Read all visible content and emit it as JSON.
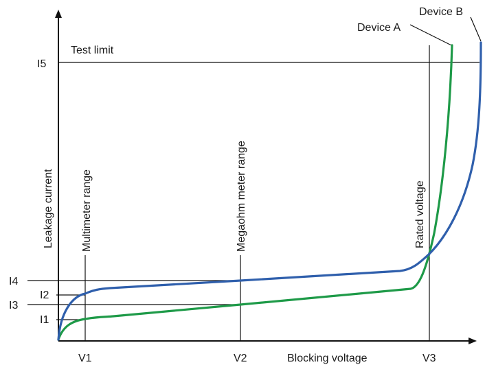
{
  "diagram": {
    "x_axis_label": "Blocking voltage",
    "y_axis_label": "Leakage current",
    "x_ticks": [
      "V1",
      "V2",
      "V3"
    ],
    "y_ticks": [
      "I1",
      "I2",
      "I3",
      "I4",
      "I5"
    ],
    "test_limit_label": "Test limit",
    "multimeter_label": "Multimeter range",
    "megaohm_label": "Megaohm meter range",
    "rated_label": "Rated voltage",
    "device_a_label": "Device A",
    "device_b_label": "Device B"
  },
  "colors": {
    "device_a": "#1e9a48",
    "device_b": "#2f5fac",
    "axis": "#111111"
  }
}
